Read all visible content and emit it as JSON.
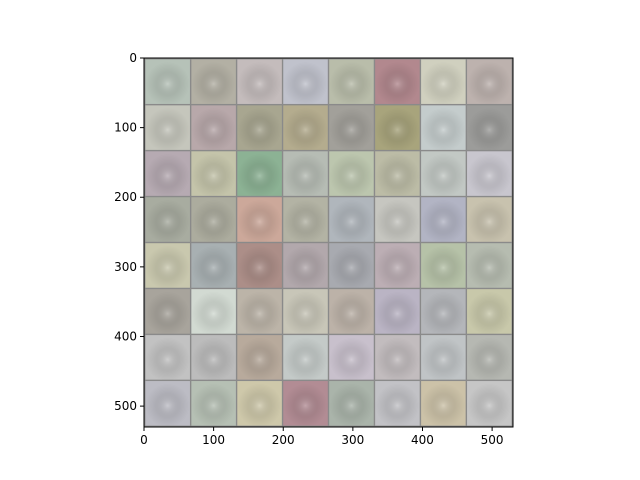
{
  "chart_data": {
    "type": "heatmap",
    "title": "",
    "xlabel": "",
    "ylabel": "",
    "xlim": [
      0,
      530
    ],
    "ylim": [
      530,
      0
    ],
    "x_ticks": [
      0,
      100,
      200,
      300,
      400,
      500
    ],
    "y_ticks": [
      0,
      100,
      200,
      300,
      400,
      500
    ],
    "grid": {
      "rows": 8,
      "cols": 8,
      "tile_size": 64,
      "separator": 2,
      "separator_color": "#8a8a8a"
    },
    "tile_colors": [
      [
        "#b6c2b8",
        "#b3b0a4",
        "#c4bcbc",
        "#c0c2cc",
        "#b9bdaa",
        "#b2888e",
        "#d0d0bf",
        "#bdb2ae"
      ],
      [
        "#c5c6bc",
        "#b8a8aa",
        "#a8a690",
        "#b4ac8e",
        "#a2a09a",
        "#a8a47c",
        "#c4cccc",
        "#9c9c9a"
      ],
      [
        "#b6aab2",
        "#c4c4aa",
        "#8cb294",
        "#b6bcb4",
        "#bcc6ae",
        "#bcbca6",
        "#c2c8c4",
        "#c8c6ce"
      ],
      [
        "#a8aca0",
        "#acac9e",
        "#cca89a",
        "#b3b3a4",
        "#b0b6bc",
        "#c6c6c0",
        "#b2b4c4",
        "#c8c2ae"
      ],
      [
        "#c9c8ae",
        "#a8b0b2",
        "#ac8e88",
        "#b2a8ac",
        "#a8aab0",
        "#bcaeb4",
        "#b6c2a8",
        "#b6bcb0"
      ],
      [
        "#a8a49c",
        "#d2dad2",
        "#bcb4a8",
        "#c8c6b8",
        "#bcb2a8",
        "#bab4c4",
        "#b4b6ba",
        "#c8c8aa"
      ],
      [
        "#c2c2c2",
        "#bcbcbc",
        "#b8aa9c",
        "#c4cac8",
        "#c8c0cc",
        "#c2bcbe",
        "#c0c4c6",
        "#b6b8b2"
      ],
      [
        "#bcbcc4",
        "#b6c0b4",
        "#cec8aa",
        "#b28c94",
        "#aab4aa",
        "#c2c2c6",
        "#ccc2a8",
        "#c6c6c6"
      ]
    ]
  }
}
